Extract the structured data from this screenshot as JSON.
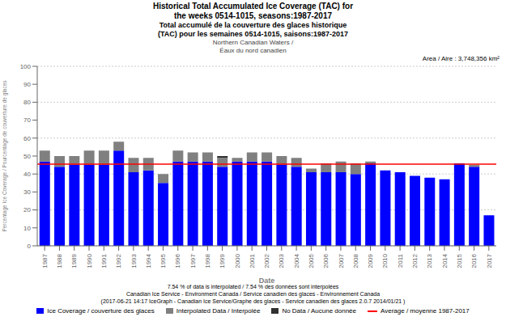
{
  "chart_data": {
    "type": "bar",
    "title": [
      "Historical Total Accumulated Ice Coverage (TAC) for",
      "the weeks 0514-1015, seasons:1987-2017"
    ],
    "subtitle": [
      "Total accumulé de la couverture des glaces historique",
      "(TAC) pour les semaines 0514-1015, saisons:1987-2017"
    ],
    "annotations": [
      "Northern Canadian Waters /",
      "Éaux du nord canadien",
      "Area / Aire : 3,748,356 km²",
      "7.54 % of data is interpolated / 7.54 % des données sont interpolées",
      "Canadian Ice Service - Environment Canada / Service canadien des glaces - Environnement Canada",
      "(2017-06-21 14:17 IceGraph - Canadian Ice Service/Graphe des glaces - Service canadien des glaces 2.0.7 2014/01/21 )"
    ],
    "xlabel": "Date",
    "ylabel": "Percentage Ice Coverage / Pourcentage de couverture de glaces",
    "categories": [
      "1987",
      "1988",
      "1989",
      "1990",
      "1991",
      "1992",
      "1993",
      "1994",
      "1995",
      "1996",
      "1997",
      "1998",
      "1999",
      "2000",
      "2001",
      "2002",
      "2003",
      "2004",
      "2005",
      "2006",
      "2007",
      "2008",
      "2009",
      "2010",
      "2011",
      "2012",
      "2013",
      "2014",
      "2015",
      "2016",
      "2017"
    ],
    "series": [
      {
        "name": "Ice Coverage / couverture des glaces",
        "color": "#0000FF",
        "values": [
          47,
          44,
          45,
          45,
          45,
          53,
          41,
          42,
          35,
          47,
          47,
          47,
          44,
          47,
          47,
          47,
          45,
          44,
          41,
          41,
          41,
          40,
          46,
          42,
          41,
          39,
          38,
          37,
          46,
          44,
          17
        ]
      },
      {
        "name": "Interpolated Data / Interpolée",
        "color": "#808080",
        "values": [
          6,
          6,
          5,
          8,
          8,
          5,
          8,
          7,
          5,
          6,
          5,
          5,
          5,
          2,
          5,
          5,
          5,
          5,
          2,
          5,
          6,
          6,
          1,
          0,
          0,
          0,
          0,
          0,
          0,
          1,
          0
        ]
      },
      {
        "name": "No Data / Aucune donnée",
        "color": "#303030",
        "values": [
          0,
          0,
          0,
          0,
          0,
          0,
          0,
          0,
          0,
          0,
          0,
          0,
          1,
          0,
          0,
          0,
          0,
          0,
          0,
          0,
          0,
          0,
          0,
          0,
          0,
          0,
          0,
          0,
          0,
          0,
          0
        ]
      }
    ],
    "reference_line": {
      "name": "Average / moyenne 1987-2017",
      "value": 45.5,
      "color": "#FF0000"
    },
    "stacked": true,
    "grid": true,
    "legend": "bottom",
    "ylim": [
      0,
      100
    ],
    "yticks": [
      0,
      10,
      20,
      30,
      40,
      50,
      60,
      70,
      80,
      90,
      100
    ]
  }
}
